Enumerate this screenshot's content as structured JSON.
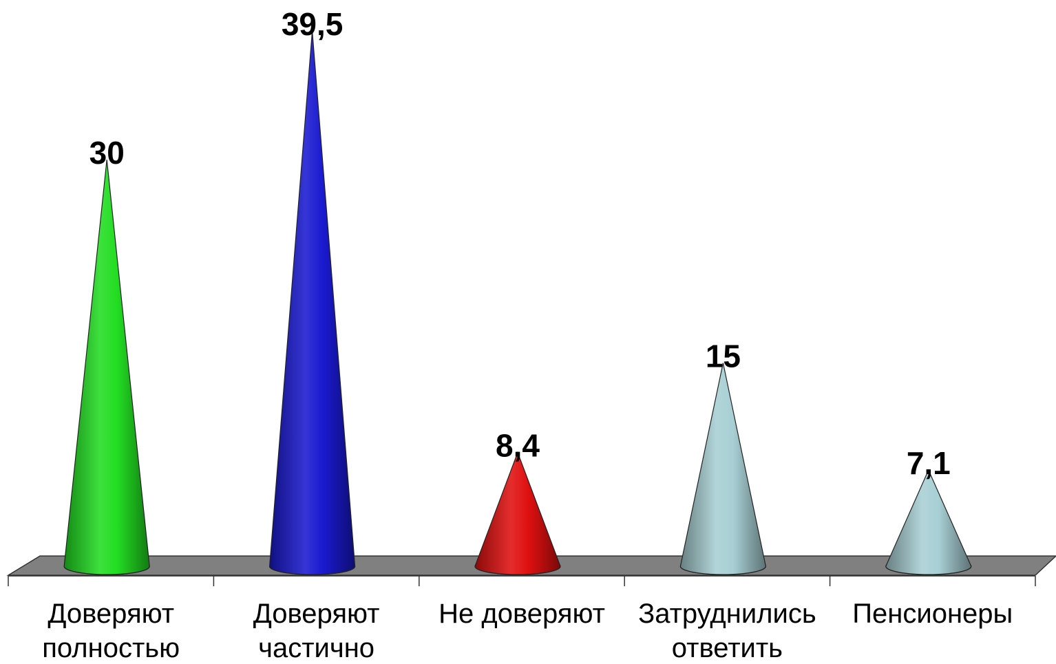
{
  "chart_data": {
    "type": "bar",
    "style": "3d-cone",
    "categories": [
      [
        "Доверяют",
        "полностью"
      ],
      [
        "Доверяют",
        "частично"
      ],
      [
        "Не доверяют"
      ],
      [
        "Затруднились",
        "ответить"
      ],
      [
        "Пенсионеры"
      ]
    ],
    "values": [
      30,
      39.5,
      8.4,
      15,
      7.1
    ],
    "value_labels": [
      "30",
      "39,5",
      "8,4",
      "15",
      "7,1"
    ],
    "colors": [
      "#22dd22",
      "#1a1ad0",
      "#e01010",
      "#a8cfd4",
      "#a8cfd4"
    ],
    "ylim": [
      0,
      39.5
    ],
    "grid": false,
    "legend": "none",
    "floor_color": "#808080"
  }
}
